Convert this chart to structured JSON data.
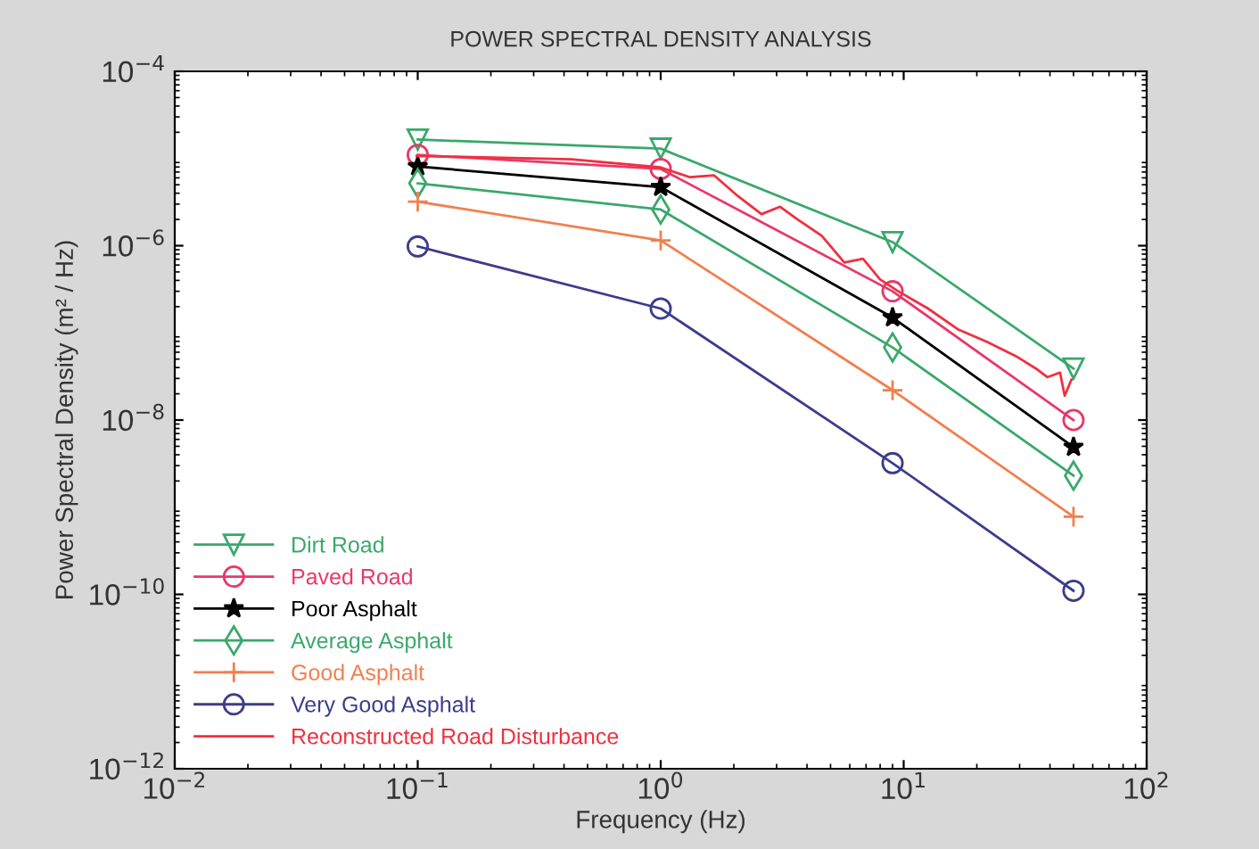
{
  "chart_data": {
    "type": "line",
    "title": "POWER SPECTRAL DENSITY ANALYSIS",
    "xlabel": "Frequency (Hz)",
    "ylabel": "Power Spectral Density (m² / Hz)",
    "log": "xy",
    "grid": false,
    "legend": "bottom left",
    "xlim": [
      0.01,
      100
    ],
    "ylim": [
      1e-12,
      0.0001
    ],
    "xticks": [
      {
        "value": 0.01,
        "label": "10$^{−2}$"
      },
      {
        "value": 0.1,
        "label": "10$^{−1}$"
      },
      {
        "value": 1,
        "label": "10$^{0}$"
      },
      {
        "value": 10,
        "label": "10$^{1}$"
      },
      {
        "value": 100,
        "label": "10$^{2}$"
      }
    ],
    "yticks": [
      {
        "value": 1e-12,
        "label": "10$^{−12}$"
      },
      {
        "value": 1e-10,
        "label": "10$^{−10}$"
      },
      {
        "value": 1e-08,
        "label": "10$^{−8}$"
      },
      {
        "value": 1e-06,
        "label": "10$^{−6}$"
      },
      {
        "value": 0.0001,
        "label": "10$^{−4}$"
      }
    ],
    "series": [
      {
        "name": "Dirt Road",
        "color": "#3aa86b",
        "marker": "triangle",
        "x": [
          0.1,
          1,
          9,
          50
        ],
        "values": [
          1.65e-05,
          1.3e-05,
          1.1e-06,
          3.9e-08
        ]
      },
      {
        "name": "Paved Road",
        "color": "#e8386a",
        "marker": "circle",
        "x": [
          0.1,
          1,
          9,
          50
        ],
        "values": [
          1.1e-05,
          7.6e-06,
          3e-07,
          1e-08
        ]
      },
      {
        "name": "Poor Asphalt",
        "color": "#000000",
        "marker": "star",
        "x": [
          0.1,
          1,
          9,
          50
        ],
        "values": [
          8.1e-06,
          4.7e-06,
          1.5e-07,
          4.9e-09
        ]
      },
      {
        "name": "Average Asphalt",
        "color": "#3aa86b",
        "marker": "diamond",
        "x": [
          0.1,
          1,
          9,
          50
        ],
        "values": [
          5.2e-06,
          2.6e-06,
          6.8e-08,
          2.3e-09
        ]
      },
      {
        "name": "Good Asphalt",
        "color": "#f08050",
        "marker": "cross",
        "x": [
          0.1,
          1,
          9,
          50
        ],
        "values": [
          3.2e-06,
          1.15e-06,
          2.2e-08,
          7.8e-10
        ]
      },
      {
        "name": "Very Good Asphalt",
        "color": "#3c3c8c",
        "marker": "circle",
        "x": [
          0.1,
          1,
          9,
          50
        ],
        "values": [
          9.8e-07,
          1.9e-07,
          3.2e-09,
          1.1e-10
        ]
      },
      {
        "name": "Reconstructed Road Disturbance",
        "color": "#f03040",
        "marker": "none",
        "x": [
          0.099,
          0.43,
          1.0,
          1.32,
          1.66,
          2.08,
          2.6,
          3.1,
          3.66,
          4.6,
          5.7,
          6.8,
          8.0,
          9.5,
          12.6,
          16.7,
          22,
          29,
          35,
          39,
          44,
          46,
          49
        ],
        "values": [
          1.07e-05,
          9.8e-06,
          7.9e-06,
          6.1e-06,
          6.4e-06,
          3.7e-06,
          2.3e-06,
          2.8e-06,
          2e-06,
          1.3e-06,
          6.4e-07,
          7.1e-07,
          4.1e-07,
          3e-07,
          1.9e-07,
          1.1e-07,
          7.9e-08,
          5.4e-08,
          3.9e-08,
          3.1e-08,
          3.5e-08,
          1.9e-08,
          2.9e-08
        ]
      }
    ]
  }
}
